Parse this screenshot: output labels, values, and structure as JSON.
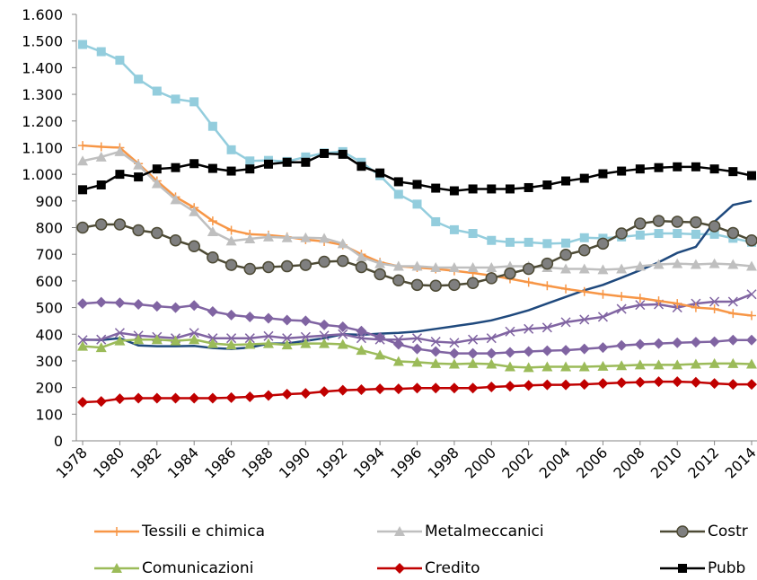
{
  "chart_data": {
    "type": "line",
    "x": [
      1978,
      1979,
      1980,
      1981,
      1982,
      1983,
      1984,
      1985,
      1986,
      1987,
      1988,
      1989,
      1990,
      1991,
      1992,
      1993,
      1994,
      1995,
      1996,
      1997,
      1998,
      1999,
      2000,
      2001,
      2002,
      2003,
      2004,
      2005,
      2006,
      2007,
      2008,
      2009,
      2010,
      2011,
      2012,
      2013,
      2014
    ],
    "xlim": [
      1977.66,
      2014.29
    ],
    "xticks": [
      1978,
      1980,
      1982,
      1984,
      1986,
      1988,
      1990,
      1992,
      1994,
      1996,
      1998,
      2000,
      2002,
      2004,
      2006,
      2008,
      2010,
      2012,
      2014
    ],
    "ylim": [
      0,
      1600
    ],
    "yticks": [
      0,
      100,
      200,
      300,
      400,
      500,
      600,
      700,
      800,
      900,
      {
        "value": 1000,
        "label": "1.000"
      },
      {
        "value": 1100,
        "label": "1.100"
      },
      {
        "value": 1200,
        "label": "1.200"
      },
      {
        "value": 1300,
        "label": "1.300"
      },
      {
        "value": 1400,
        "label": "1.400"
      },
      {
        "value": 1500,
        "label": "1.500"
      },
      {
        "value": 1600,
        "label": "1.600"
      }
    ],
    "series": [
      {
        "color": "#93cddd",
        "marker": "square",
        "values": [
          1487,
          1460,
          1428,
          1357,
          1312,
          1282,
          1272,
          1180,
          1092,
          1050,
          1052,
          1048,
          1065,
          1080,
          1085,
          1045,
          995,
          925,
          888,
          822,
          792,
          778,
          752,
          745,
          745,
          740,
          742,
          762,
          760,
          765,
          772,
          778,
          778,
          775,
          775,
          760,
          745
        ]
      },
      {
        "color": "#1f497d",
        "marker": null,
        "values": [
          380,
          378,
          385,
          358,
          355,
          355,
          356,
          348,
          345,
          350,
          365,
          365,
          375,
          385,
          400,
          398,
          402,
          405,
          410,
          420,
          430,
          440,
          452,
          470,
          490,
          515,
          540,
          565,
          585,
          612,
          640,
          670,
          705,
          728,
          822,
          885,
          900
        ]
      },
      {
        "color": "#8064a2",
        "marker": "diamond",
        "values": [
          515,
          520,
          518,
          512,
          505,
          500,
          508,
          485,
          472,
          465,
          460,
          453,
          450,
          435,
          428,
          412,
          388,
          362,
          345,
          335,
          328,
          328,
          328,
          332,
          335,
          338,
          340,
          345,
          350,
          358,
          362,
          365,
          368,
          370,
          372,
          378,
          378
        ]
      },
      {
        "color": "#8064a2",
        "marker": "x",
        "values": [
          378,
          380,
          405,
          395,
          390,
          385,
          405,
          385,
          385,
          385,
          393,
          385,
          390,
          395,
          400,
          385,
          380,
          380,
          385,
          372,
          368,
          380,
          385,
          410,
          420,
          425,
          445,
          455,
          465,
          495,
          510,
          512,
          500,
          515,
          522,
          522,
          550
        ]
      },
      {
        "name": "Tessili e chimica",
        "color": "#f79646",
        "marker": "plus",
        "values": [
          1108,
          1103,
          1100,
          1040,
          975,
          915,
          875,
          825,
          790,
          775,
          772,
          765,
          755,
          748,
          735,
          700,
          670,
          655,
          650,
          645,
          638,
          630,
          620,
          608,
          595,
          582,
          570,
          560,
          550,
          542,
          535,
          525,
          515,
          500,
          495,
          478,
          470
        ]
      },
      {
        "name": "Metalmeccanici",
        "color": "#bfbfbf",
        "marker": "triangle",
        "values": [
          1050,
          1065,
          1085,
          1035,
          965,
          905,
          860,
          785,
          750,
          758,
          765,
          762,
          762,
          760,
          740,
          690,
          665,
          655,
          655,
          650,
          650,
          650,
          650,
          655,
          655,
          650,
          645,
          645,
          642,
          645,
          655,
          662,
          665,
          662,
          665,
          662,
          655
        ]
      },
      {
        "name": "Costr",
        "color": "#4d4a35",
        "marker": "circle",
        "values": [
          800,
          812,
          812,
          790,
          780,
          752,
          730,
          688,
          660,
          645,
          652,
          655,
          660,
          672,
          675,
          652,
          625,
          602,
          585,
          582,
          585,
          592,
          610,
          628,
          645,
          665,
          698,
          715,
          740,
          778,
          815,
          825,
          822,
          820,
          805,
          780,
          752
        ]
      },
      {
        "name": "Comunicazioni",
        "color": "#9bbb59",
        "marker": "triangle",
        "values": [
          355,
          350,
          375,
          380,
          380,
          375,
          380,
          365,
          360,
          362,
          365,
          360,
          365,
          365,
          362,
          340,
          322,
          298,
          295,
          290,
          288,
          290,
          288,
          278,
          275,
          278,
          278,
          278,
          280,
          282,
          285,
          285,
          285,
          288,
          290,
          290,
          288
        ]
      },
      {
        "name": "Credito",
        "color": "#c00000",
        "marker": "diamond",
        "values": [
          145,
          148,
          158,
          160,
          160,
          160,
          160,
          160,
          162,
          165,
          170,
          175,
          178,
          185,
          190,
          192,
          195,
          195,
          198,
          198,
          198,
          198,
          202,
          205,
          208,
          210,
          210,
          212,
          215,
          218,
          220,
          222,
          222,
          220,
          215,
          212,
          212
        ]
      },
      {
        "name": "Pubb",
        "color": "#000000",
        "marker": "square",
        "values": [
          942,
          960,
          1000,
          990,
          1020,
          1025,
          1040,
          1022,
          1012,
          1020,
          1038,
          1045,
          1045,
          1078,
          1075,
          1030,
          1005,
          972,
          962,
          948,
          938,
          945,
          945,
          945,
          950,
          960,
          975,
          985,
          1002,
          1012,
          1020,
          1025,
          1028,
          1028,
          1020,
          1010,
          995
        ]
      }
    ]
  }
}
